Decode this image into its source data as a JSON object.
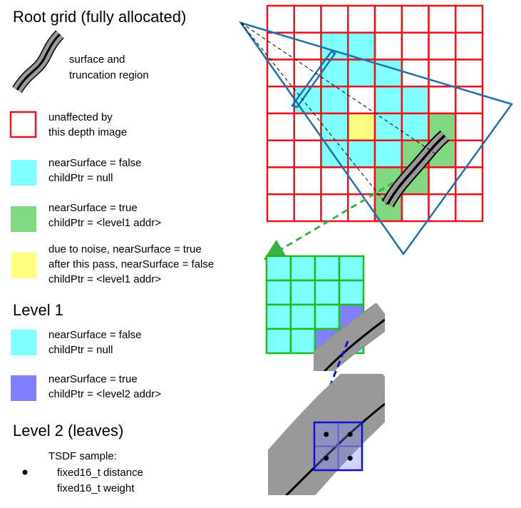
{
  "root": {
    "heading": "Root grid (fully allocated)",
    "surface_legend": [
      "surface and",
      "truncation region"
    ],
    "legend": [
      {
        "swatch": "outline-red",
        "lines": [
          "unaffected by",
          "this depth image"
        ]
      },
      {
        "swatch": "cyan",
        "lines": [
          "nearSurface = false",
          "childPtr = null"
        ]
      },
      {
        "swatch": "green",
        "lines": [
          "nearSurface = true",
          "childPtr = <level1 addr>"
        ]
      },
      {
        "swatch": "yellow",
        "lines": [
          "due to noise, nearSurface = true",
          "after this pass, nearSurface = false",
          "childPtr = <level1 addr>"
        ]
      }
    ]
  },
  "level1": {
    "heading": "Level 1",
    "legend": [
      {
        "swatch": "cyan",
        "lines": [
          "nearSurface = false",
          "childPtr = null"
        ]
      },
      {
        "swatch": "blue",
        "lines": [
          "nearSurface = true",
          "childPtr = <level2 addr>"
        ]
      }
    ]
  },
  "level2": {
    "heading": "Level 2 (leaves)",
    "sample_lines": [
      "TSDF sample:",
      "fixed16_t distance",
      "fixed16_t weight"
    ]
  },
  "colors": {
    "unaffected_outline": "#e8131c",
    "cyan_fill": "#80ffff",
    "green_fill": "#80d980",
    "yellow_fill": "#ffff80",
    "blue_fill": "#8080ff",
    "frustum": "#1f6fb0",
    "level1_outline": "#1ebc22",
    "level2_outline": "#1010dd",
    "surface_gray": "#999999"
  }
}
